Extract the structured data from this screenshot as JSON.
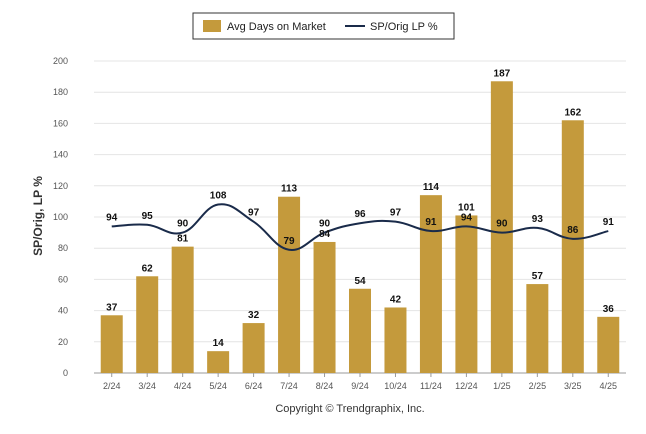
{
  "chart_data": {
    "type": "bar",
    "categories": [
      "2/24",
      "3/24",
      "4/24",
      "5/24",
      "6/24",
      "7/24",
      "8/24",
      "9/24",
      "10/24",
      "11/24",
      "12/24",
      "1/25",
      "2/25",
      "3/25",
      "4/25"
    ],
    "series": [
      {
        "name": "Avg Days on Market",
        "type": "bar",
        "color": "#c49a3c",
        "values": [
          37,
          62,
          81,
          14,
          32,
          113,
          84,
          54,
          42,
          114,
          101,
          187,
          57,
          162,
          36
        ]
      },
      {
        "name": "SP/Orig LP %",
        "type": "line",
        "color": "#1a2b4a",
        "values": [
          94,
          95,
          90,
          108,
          97,
          79,
          90,
          96,
          97,
          91,
          94,
          90,
          93,
          86,
          91
        ]
      }
    ],
    "ylabel": "SP/Orig, LP %",
    "ylim": [
      0,
      200
    ],
    "yticks": [
      0,
      20,
      40,
      60,
      80,
      100,
      120,
      140,
      160,
      180,
      200
    ],
    "grid": true,
    "legend_position": "top-center"
  },
  "legend": {
    "bar_label": "Avg Days on Market",
    "line_label": "SP/Orig LP %"
  },
  "footer": {
    "copyright": "Copyright © Trendgraphix, Inc."
  }
}
